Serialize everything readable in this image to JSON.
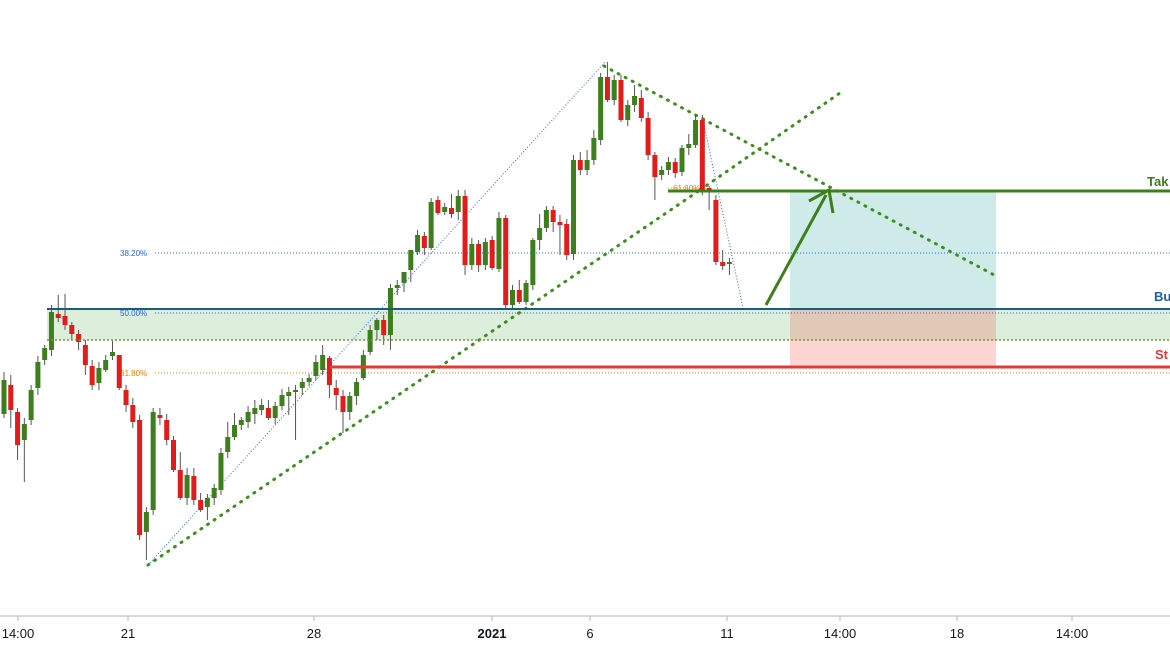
{
  "chart_data": {
    "type": "candlestick",
    "title": "",
    "xlabel": "",
    "ylabel": "",
    "grid": false,
    "x_ticks": [
      {
        "label": "14:00",
        "bold": false
      },
      {
        "label": "21",
        "bold": false
      },
      {
        "label": "28",
        "bold": false
      },
      {
        "label": "2021",
        "bold": true
      },
      {
        "label": "6",
        "bold": false
      },
      {
        "label": "11",
        "bold": false
      },
      {
        "label": "14:00",
        "bold": false
      },
      {
        "label": "18",
        "bold": false
      },
      {
        "label": "14:00",
        "bold": false
      }
    ],
    "fib_levels": [
      {
        "label": "38.20%",
        "color": "#2962ff"
      },
      {
        "label": "50.00%",
        "color": "#2962ff"
      },
      {
        "label": "61.80%",
        "color": "#f57c00"
      },
      {
        "label": "61.80%",
        "color": "#f57c00"
      }
    ],
    "levels": [
      {
        "name": "Take Profit",
        "shown_text": "Tak",
        "color": "#3d7f1c"
      },
      {
        "name": "Buy",
        "shown_text": "Bu",
        "color": "#1f5fa8"
      },
      {
        "name": "Stop Loss",
        "shown_text": "St",
        "color": "#e53935"
      }
    ],
    "colors": {
      "up": "#3d7f1c",
      "down": "#e21b1b",
      "wick": "#555555",
      "trendline": "#3d8f1c",
      "fib_blue": "#2962ff",
      "buy_zone": "rgba(76,175,80,0.2)",
      "profit_zone": "rgba(38,166,154,0.22)",
      "loss_zone": "rgba(244,67,54,0.22)"
    },
    "candles": [
      [
        414,
        380,
        418,
        372
      ],
      [
        385,
        410,
        428,
        375
      ],
      [
        412,
        445,
        460,
        408
      ],
      [
        440,
        424,
        482,
        418
      ],
      [
        420,
        390,
        425,
        385
      ],
      [
        388,
        362,
        395,
        356
      ],
      [
        360,
        348,
        365,
        345
      ],
      [
        350,
        312,
        356,
        305
      ],
      [
        314,
        318,
        322,
        295
      ],
      [
        316,
        325,
        330,
        294
      ],
      [
        325,
        334,
        340,
        322
      ],
      [
        334,
        342,
        350,
        330
      ],
      [
        345,
        365,
        375,
        340
      ],
      [
        366,
        385,
        390,
        360
      ],
      [
        383,
        368,
        390,
        362
      ],
      [
        370,
        360,
        372,
        355
      ],
      [
        356,
        352,
        360,
        340
      ],
      [
        355,
        388,
        390,
        380
      ],
      [
        390,
        405,
        412,
        385
      ],
      [
        405,
        422,
        428,
        398
      ],
      [
        420,
        535,
        540,
        415
      ],
      [
        532,
        512,
        560,
        507
      ],
      [
        510,
        412,
        515,
        408
      ],
      [
        415,
        418,
        425,
        408
      ],
      [
        420,
        440,
        445,
        414
      ],
      [
        440,
        470,
        472,
        436
      ],
      [
        470,
        498,
        500,
        452
      ],
      [
        498,
        475,
        505,
        468
      ],
      [
        476,
        500,
        505,
        468
      ],
      [
        500,
        510,
        512,
        493
      ],
      [
        507,
        498,
        520,
        494
      ],
      [
        498,
        488,
        505,
        484
      ],
      [
        490,
        453,
        495,
        448
      ],
      [
        452,
        437,
        458,
        422
      ],
      [
        437,
        425,
        440,
        413
      ],
      [
        425,
        420,
        430,
        417
      ],
      [
        422,
        412,
        428,
        406
      ],
      [
        414,
        408,
        424,
        400
      ],
      [
        410,
        405,
        415,
        399
      ],
      [
        408,
        418,
        420,
        400
      ],
      [
        418,
        406,
        424,
        402
      ],
      [
        406,
        395,
        410,
        389
      ],
      [
        396,
        392,
        415,
        387
      ],
      [
        392,
        390,
        440,
        385
      ],
      [
        388,
        382,
        395,
        378
      ],
      [
        382,
        378,
        386,
        374
      ],
      [
        376,
        362,
        380,
        355
      ],
      [
        370,
        355,
        375,
        345
      ],
      [
        358,
        385,
        398,
        356
      ],
      [
        388,
        395,
        410,
        380
      ],
      [
        396,
        412,
        433,
        390
      ],
      [
        412,
        396,
        420,
        392
      ],
      [
        396,
        382,
        405,
        378
      ],
      [
        378,
        355,
        380,
        350
      ],
      [
        352,
        330,
        355,
        325
      ],
      [
        330,
        320,
        340,
        318
      ],
      [
        320,
        335,
        345,
        315
      ],
      [
        335,
        288,
        350,
        284
      ],
      [
        288,
        285,
        295,
        280
      ],
      [
        283,
        272,
        292,
        272
      ],
      [
        270,
        250,
        282,
        250
      ],
      [
        252,
        235,
        255,
        230
      ],
      [
        236,
        248,
        255,
        232
      ],
      [
        248,
        202,
        250,
        198
      ],
      [
        200,
        213,
        215,
        196
      ],
      [
        212,
        207,
        215,
        203
      ],
      [
        208,
        214,
        218,
        194
      ],
      [
        212,
        196,
        220,
        190
      ],
      [
        196,
        265,
        275,
        190
      ],
      [
        265,
        244,
        270,
        238
      ],
      [
        244,
        265,
        272,
        240
      ],
      [
        265,
        242,
        270,
        238
      ],
      [
        240,
        268,
        270,
        236
      ],
      [
        269,
        218,
        272,
        212
      ],
      [
        218,
        305,
        310,
        215
      ],
      [
        305,
        290,
        310,
        285
      ],
      [
        290,
        302,
        304,
        280
      ],
      [
        302,
        283,
        305,
        280
      ],
      [
        285,
        240,
        290,
        238
      ],
      [
        240,
        228,
        250,
        214
      ],
      [
        228,
        210,
        232,
        206
      ],
      [
        210,
        222,
        232,
        206
      ],
      [
        222,
        225,
        255,
        215
      ],
      [
        224,
        255,
        260,
        219
      ],
      [
        254,
        160,
        260,
        155
      ],
      [
        160,
        170,
        175,
        152
      ],
      [
        170,
        160,
        175,
        150
      ],
      [
        160,
        138,
        165,
        130
      ],
      [
        140,
        77,
        145,
        73
      ],
      [
        77,
        100,
        102,
        62
      ],
      [
        100,
        80,
        105,
        75
      ],
      [
        80,
        120,
        122,
        75
      ],
      [
        120,
        105,
        126,
        100
      ],
      [
        105,
        96,
        112,
        85
      ],
      [
        98,
        118,
        122,
        90
      ],
      [
        118,
        155,
        160,
        112
      ],
      [
        155,
        177,
        200,
        152
      ],
      [
        175,
        170,
        180,
        166
      ],
      [
        170,
        162,
        175,
        157
      ],
      [
        162,
        173,
        178,
        158
      ],
      [
        172,
        148,
        176,
        145
      ],
      [
        148,
        144,
        155,
        134
      ],
      [
        145,
        120,
        148,
        115
      ],
      [
        120,
        190,
        195,
        115
      ],
      [
        188,
        192,
        210,
        186
      ],
      [
        200,
        262,
        265,
        195
      ],
      [
        262,
        266,
        270,
        250
      ],
      [
        264,
        262,
        275,
        258
      ]
    ]
  }
}
